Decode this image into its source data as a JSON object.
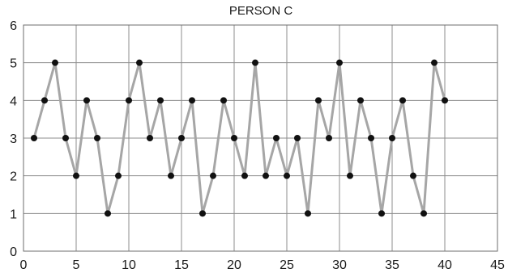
{
  "chart_data": {
    "type": "line",
    "title": "PERSON C",
    "xlabel": "",
    "ylabel": "",
    "xlim": [
      0,
      45
    ],
    "ylim": [
      0,
      6
    ],
    "x_ticks": [
      0,
      5,
      10,
      15,
      20,
      25,
      30,
      35,
      40,
      45
    ],
    "y_ticks": [
      0,
      1,
      2,
      3,
      4,
      5,
      6
    ],
    "grid": true,
    "legend": "none",
    "series": [
      {
        "x": [
          1,
          2,
          3,
          4,
          5,
          6,
          7,
          8,
          9,
          10,
          11,
          12,
          13,
          14,
          15,
          16,
          17,
          18,
          19,
          20,
          21,
          22,
          23,
          24,
          25,
          26,
          27,
          28,
          29,
          30,
          31,
          32,
          33,
          34,
          35,
          36,
          37,
          38,
          39,
          40
        ],
        "values": [
          3,
          4,
          5,
          3,
          2,
          4,
          3,
          1,
          2,
          4,
          5,
          3,
          4,
          2,
          3,
          4,
          1,
          2,
          4,
          3,
          2,
          5,
          2,
          3,
          2,
          3,
          1,
          4,
          3,
          5,
          2,
          4,
          3,
          1,
          3,
          4,
          2,
          1,
          5,
          4
        ],
        "line_color": "#a6a6a6",
        "marker_color": "#111111"
      }
    ]
  }
}
